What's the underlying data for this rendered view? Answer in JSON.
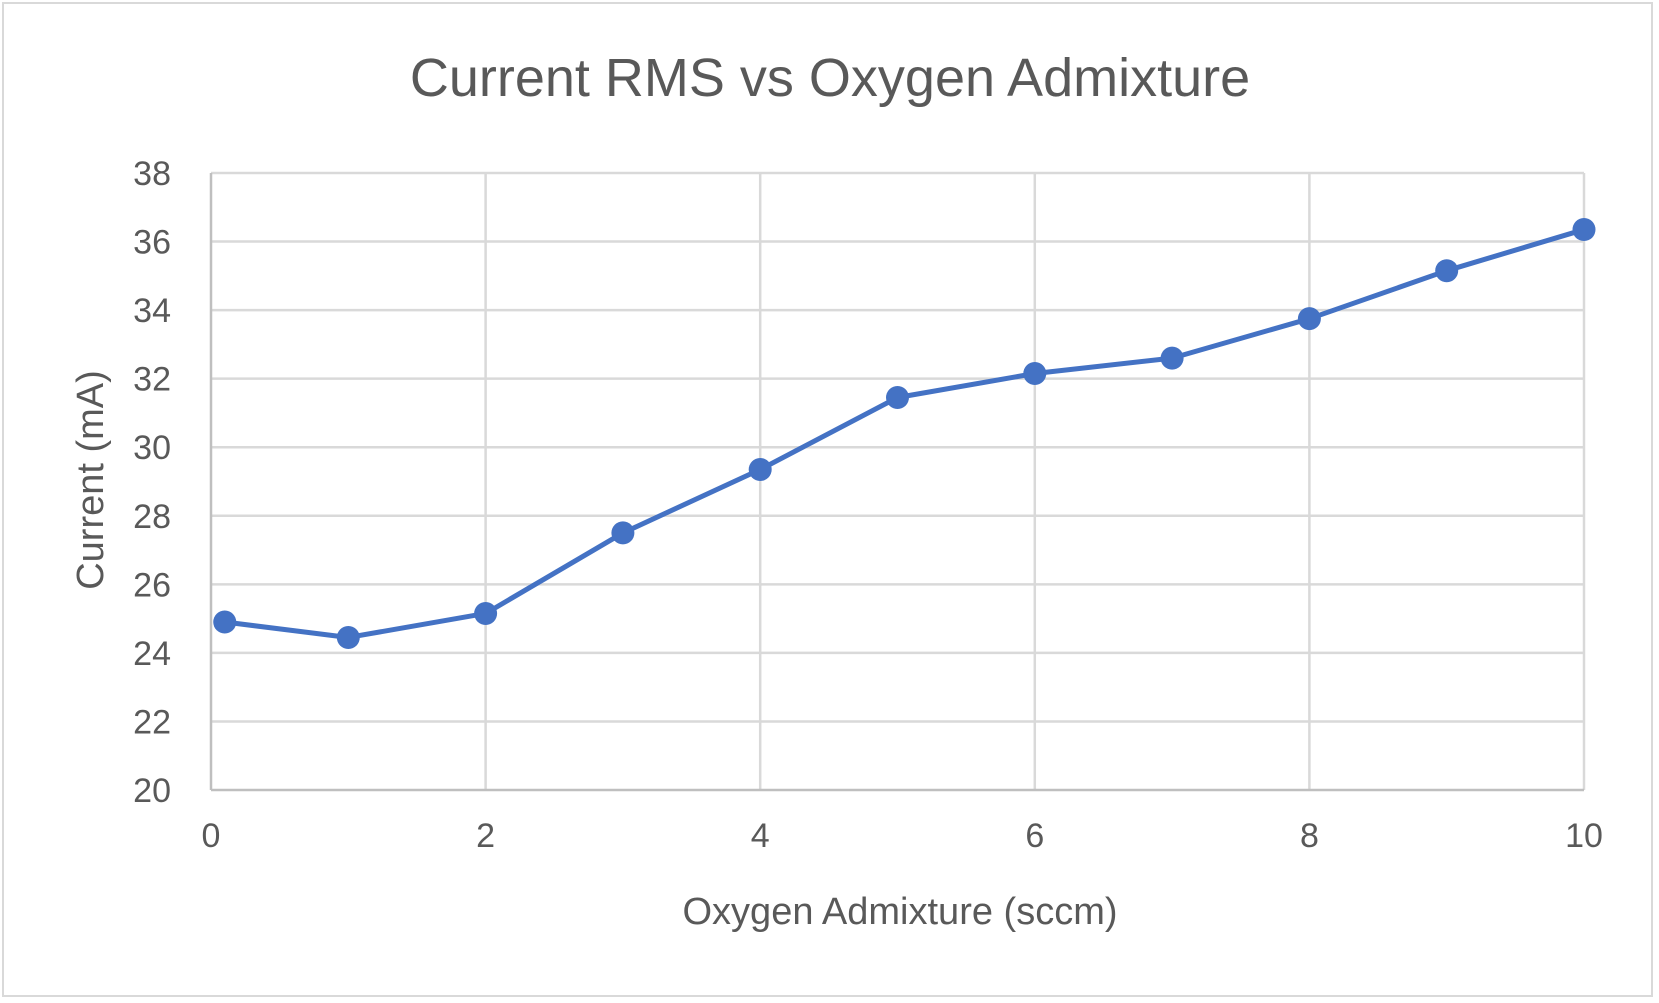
{
  "chart_data": {
    "type": "line",
    "title": "Current RMS vs Oxygen Admixture",
    "xlabel": "Oxygen Admixture (sccm)",
    "ylabel": "Current (mA)",
    "xlim": [
      0,
      10
    ],
    "ylim": [
      20,
      38
    ],
    "x_ticks": [
      "0",
      "2",
      "4",
      "6",
      "8",
      "10"
    ],
    "y_ticks": [
      "20",
      "22",
      "24",
      "26",
      "28",
      "30",
      "32",
      "34",
      "36",
      "38"
    ],
    "grid": true,
    "legend": "none",
    "series": [
      {
        "color": "#4472c4",
        "points": [
          {
            "x": 0.1,
            "y": 24.9
          },
          {
            "x": 1,
            "y": 24.45
          },
          {
            "x": 2,
            "y": 25.15
          },
          {
            "x": 3,
            "y": 27.5
          },
          {
            "x": 4,
            "y": 29.35
          },
          {
            "x": 5,
            "y": 31.45
          },
          {
            "x": 6,
            "y": 32.15
          },
          {
            "x": 7,
            "y": 32.6
          },
          {
            "x": 8,
            "y": 33.75
          },
          {
            "x": 9,
            "y": 35.15
          },
          {
            "x": 10,
            "y": 36.35
          }
        ]
      }
    ]
  }
}
